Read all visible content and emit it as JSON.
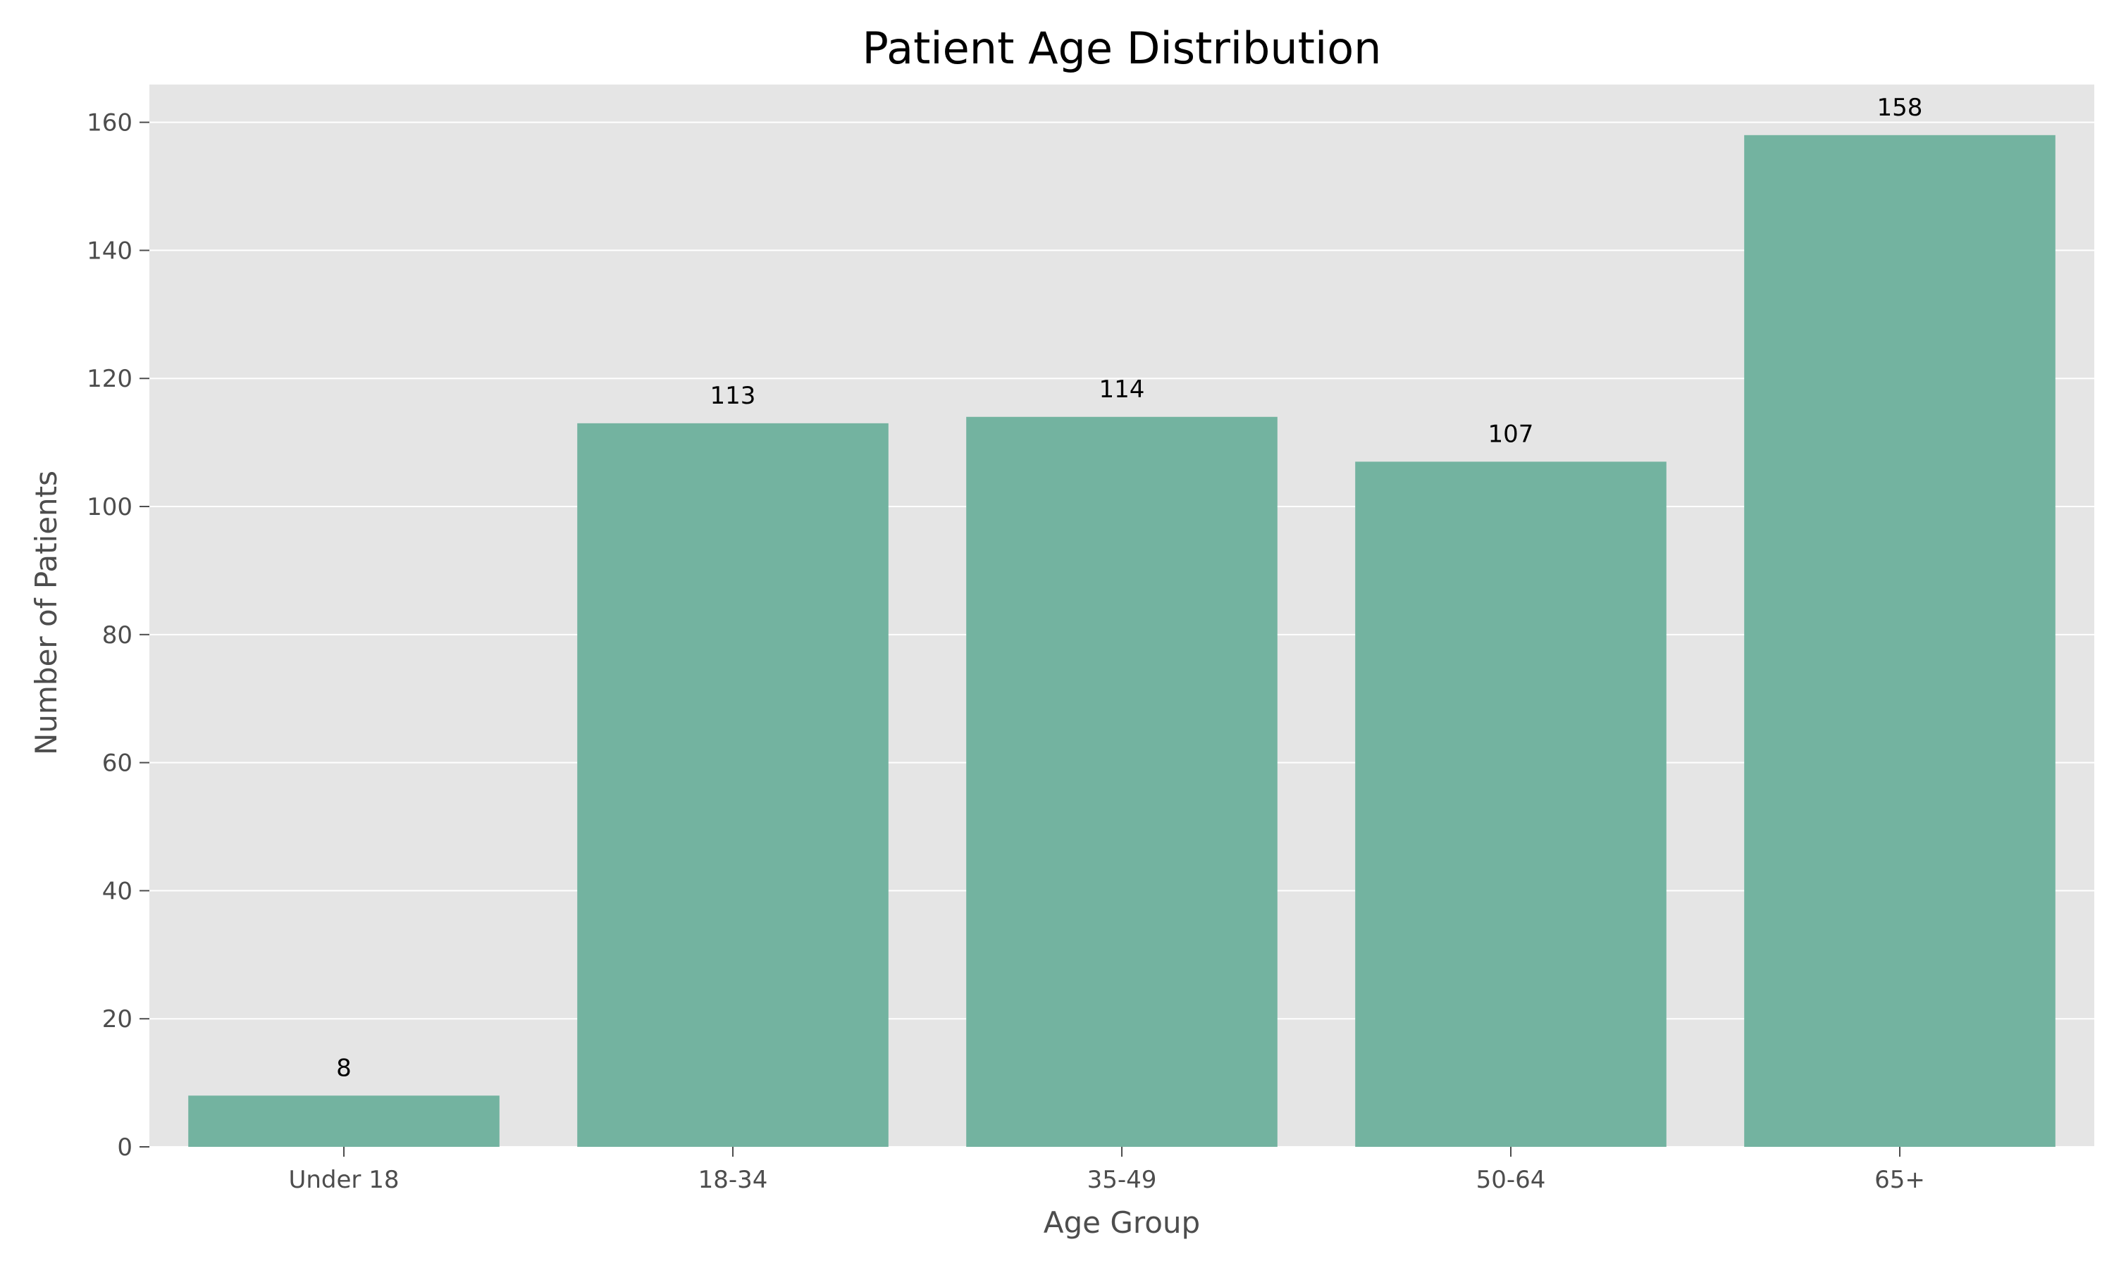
{
  "chart_data": {
    "type": "bar",
    "title": "Patient Age Distribution",
    "xlabel": "Age Group",
    "ylabel": "Number of Patients",
    "categories": [
      "Under 18",
      "18-34",
      "35-49",
      "50-64",
      "65+"
    ],
    "values": [
      8,
      113,
      114,
      107,
      158
    ],
    "data_labels": [
      "8",
      "113",
      "114",
      "107",
      "158"
    ],
    "y_ticks": [
      0,
      20,
      40,
      60,
      80,
      100,
      120,
      140,
      160
    ],
    "ylim": [
      0,
      165.9
    ],
    "grid": true,
    "legend": "none",
    "colors": {
      "bar": "#73b3a0",
      "plot_background": "#e5e5e5",
      "grid": "#ffffff",
      "tick": "#4d4d4d",
      "text": "#000000"
    }
  }
}
